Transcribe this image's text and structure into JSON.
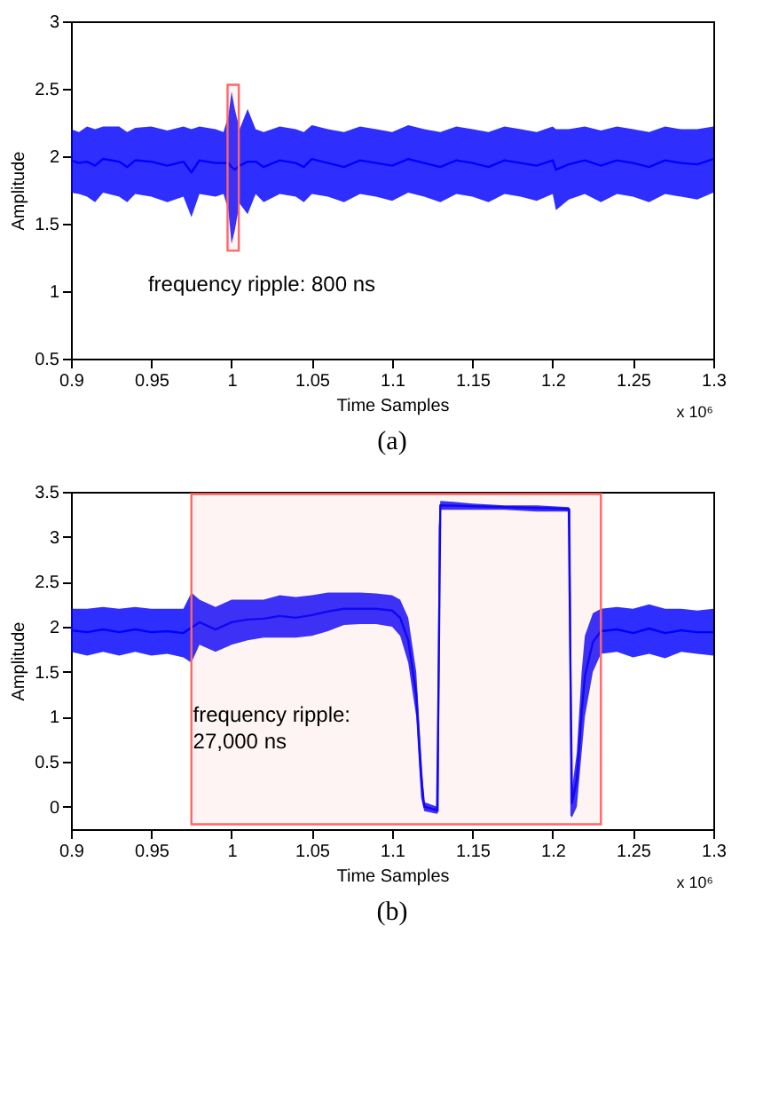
{
  "chart_data": [
    {
      "type": "line",
      "xlabel": "Time Samples",
      "ylabel": "Amplitude",
      "xlim": [
        0.9,
        1.3
      ],
      "ylim": [
        0.5,
        3
      ],
      "xticks": [
        0.9,
        0.95,
        1,
        1.05,
        1.1,
        1.15,
        1.2,
        1.25,
        1.3
      ],
      "yticks": [
        0.5,
        1,
        1.5,
        2,
        2.5,
        3
      ],
      "marker": "none",
      "line_style": "solid",
      "series": [
        {
          "color": "#0000ff",
          "x": [
            0.9,
            0.905,
            0.91,
            0.915,
            0.92,
            0.93,
            0.935,
            0.94,
            0.95,
            0.96,
            0.97,
            0.975,
            0.98,
            0.99,
            0.995,
            0.998,
            1.0,
            1.002,
            1.005,
            1.01,
            1.015,
            1.02,
            1.03,
            1.04,
            1.045,
            1.05,
            1.06,
            1.07,
            1.08,
            1.09,
            1.1,
            1.11,
            1.12,
            1.13,
            1.14,
            1.15,
            1.16,
            1.17,
            1.18,
            1.19,
            1.2,
            1.202,
            1.21,
            1.22,
            1.23,
            1.24,
            1.25,
            1.26,
            1.27,
            1.28,
            1.29,
            1.3
          ],
          "values": [
            1.97,
            1.95,
            1.96,
            1.93,
            1.98,
            1.96,
            1.92,
            1.97,
            1.96,
            1.93,
            1.96,
            1.88,
            1.97,
            1.95,
            1.95,
            1.95,
            1.92,
            1.9,
            1.93,
            1.96,
            1.96,
            1.92,
            1.97,
            1.95,
            1.92,
            1.98,
            1.95,
            1.92,
            1.97,
            1.95,
            1.93,
            1.98,
            1.95,
            1.92,
            1.97,
            1.95,
            1.92,
            1.97,
            1.95,
            1.93,
            1.97,
            1.9,
            1.94,
            1.97,
            1.93,
            1.97,
            1.95,
            1.92,
            1.97,
            1.95,
            1.94,
            1.98
          ],
          "lower": [
            1.73,
            1.72,
            1.7,
            1.66,
            1.73,
            1.7,
            1.66,
            1.72,
            1.7,
            1.66,
            1.7,
            1.55,
            1.72,
            1.7,
            1.72,
            1.6,
            1.35,
            1.45,
            1.65,
            1.57,
            1.72,
            1.66,
            1.72,
            1.7,
            1.66,
            1.72,
            1.7,
            1.66,
            1.72,
            1.7,
            1.67,
            1.73,
            1.7,
            1.66,
            1.72,
            1.7,
            1.66,
            1.72,
            1.7,
            1.67,
            1.72,
            1.6,
            1.68,
            1.72,
            1.66,
            1.72,
            1.7,
            1.66,
            1.72,
            1.7,
            1.68,
            1.73
          ],
          "upper": [
            2.2,
            2.18,
            2.22,
            2.2,
            2.22,
            2.22,
            2.18,
            2.21,
            2.22,
            2.19,
            2.22,
            2.2,
            2.22,
            2.2,
            2.18,
            2.3,
            2.48,
            2.35,
            2.2,
            2.35,
            2.2,
            2.18,
            2.22,
            2.2,
            2.18,
            2.23,
            2.2,
            2.18,
            2.22,
            2.2,
            2.18,
            2.23,
            2.2,
            2.18,
            2.22,
            2.2,
            2.18,
            2.22,
            2.2,
            2.18,
            2.22,
            2.2,
            2.2,
            2.22,
            2.19,
            2.22,
            2.2,
            2.18,
            2.22,
            2.2,
            2.2,
            2.22
          ]
        }
      ],
      "bands": [
        {
          "axis": "x",
          "from": 0.9975,
          "to": 1.0045,
          "color": "#ff6666"
        }
      ],
      "annotations": [
        "frequency ripple: 800 ns",
        "x 10⁶",
        "(a)"
      ]
    },
    {
      "type": "line",
      "xlabel": "Time Samples",
      "ylabel": "Amplitude",
      "xlim": [
        0.9,
        1.3
      ],
      "ylim": [
        -0.25,
        3.5
      ],
      "xticks": [
        0.9,
        0.95,
        1,
        1.05,
        1.1,
        1.15,
        1.2,
        1.25,
        1.3
      ],
      "yticks": [
        0,
        0.5,
        1,
        1.5,
        2,
        2.5,
        3,
        3.5
      ],
      "marker": "none",
      "line_style": "solid",
      "series": [
        {
          "color": "#0000ff",
          "x": [
            0.9,
            0.91,
            0.92,
            0.93,
            0.94,
            0.95,
            0.96,
            0.97,
            0.975,
            0.98,
            0.99,
            1.0,
            1.01,
            1.02,
            1.03,
            1.04,
            1.05,
            1.06,
            1.07,
            1.08,
            1.09,
            1.1,
            1.105,
            1.11,
            1.115,
            1.118,
            1.12,
            1.128,
            1.129,
            1.13,
            1.15,
            1.17,
            1.19,
            1.21,
            1.211,
            1.212,
            1.215,
            1.218,
            1.22,
            1.225,
            1.23,
            1.24,
            1.25,
            1.26,
            1.27,
            1.28,
            1.29,
            1.3
          ],
          "values": [
            1.96,
            1.94,
            1.97,
            1.94,
            1.97,
            1.94,
            1.95,
            1.93,
            1.99,
            2.05,
            1.97,
            2.05,
            2.08,
            2.09,
            2.12,
            2.1,
            2.13,
            2.17,
            2.2,
            2.2,
            2.2,
            2.18,
            2.1,
            1.85,
            1.25,
            0.35,
            0.0,
            -0.04,
            1.53,
            3.35,
            3.34,
            3.33,
            3.32,
            3.31,
            1.6,
            0.04,
            0.3,
            1.05,
            1.45,
            1.83,
            1.95,
            1.97,
            1.93,
            1.98,
            1.93,
            1.96,
            1.94,
            1.94
          ],
          "lower": [
            1.72,
            1.68,
            1.72,
            1.68,
            1.72,
            1.68,
            1.7,
            1.66,
            1.6,
            1.8,
            1.72,
            1.8,
            1.85,
            1.88,
            1.88,
            1.88,
            1.9,
            1.95,
            2.02,
            2.03,
            2.03,
            2.0,
            1.9,
            1.6,
            1.0,
            0.1,
            -0.05,
            -0.08,
            -0.05,
            3.3,
            3.3,
            3.3,
            3.28,
            3.28,
            -0.1,
            -0.12,
            0.0,
            0.6,
            1.0,
            1.5,
            1.7,
            1.72,
            1.66,
            1.7,
            1.65,
            1.72,
            1.7,
            1.68
          ],
          "upper": [
            2.2,
            2.2,
            2.22,
            2.2,
            2.22,
            2.2,
            2.2,
            2.2,
            2.38,
            2.3,
            2.22,
            2.3,
            2.3,
            2.3,
            2.35,
            2.33,
            2.35,
            2.38,
            2.38,
            2.38,
            2.37,
            2.35,
            2.3,
            2.1,
            1.5,
            0.6,
            0.05,
            0.0,
            3.1,
            3.4,
            3.37,
            3.35,
            3.35,
            3.33,
            3.3,
            0.2,
            0.6,
            1.5,
            1.9,
            2.15,
            2.2,
            2.22,
            2.2,
            2.25,
            2.2,
            2.2,
            2.18,
            2.2
          ]
        }
      ],
      "bands": [
        {
          "axis": "x",
          "from": 0.975,
          "to": 1.23,
          "color": "#ff6666"
        }
      ],
      "annotations": [
        "frequency ripple:\n27,000 ns",
        "x 10⁶",
        "(b)"
      ]
    }
  ]
}
